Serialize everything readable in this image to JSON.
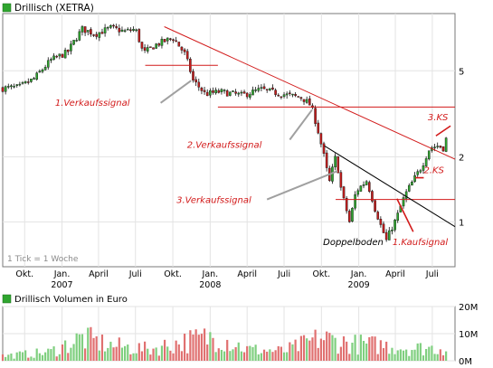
{
  "chart_data": [
    {
      "type": "candlestick",
      "title": "Drillisch (XETRA)",
      "legend_swatch_color": "#2fa52f",
      "x_tick_labels": [
        {
          "month": "Okt.",
          "date": "2006-10"
        },
        {
          "month": "Jan.",
          "year": "2007",
          "date": "2007-01"
        },
        {
          "month": "April",
          "date": "2007-04"
        },
        {
          "month": "Juli",
          "date": "2007-07"
        },
        {
          "month": "Okt.",
          "date": "2007-10"
        },
        {
          "month": "Jan.",
          "year": "2008",
          "date": "2008-01"
        },
        {
          "month": "April",
          "date": "2008-04"
        },
        {
          "month": "Juli",
          "date": "2008-07"
        },
        {
          "month": "Okt.",
          "date": "2008-10"
        },
        {
          "month": "Jan.",
          "year": "2009",
          "date": "2009-01"
        },
        {
          "month": "April",
          "date": "2009-04"
        },
        {
          "month": "Juli",
          "date": "2009-07"
        }
      ],
      "y_ticks": [
        {
          "value": 5,
          "label": "5"
        },
        {
          "value": 2,
          "label": "2"
        },
        {
          "value": 1,
          "label": "1"
        }
      ],
      "y_scale": "log",
      "ylim": [
        0.62,
        9.2
      ],
      "xlim": [
        "2006-08-08",
        "2009-08-26"
      ],
      "grid": true,
      "tick_note": "1 Tick = 1 Woche",
      "up_color": "#2fa52f",
      "down_color": "#c21d1d",
      "price_path": [
        [
          "2006-08-08",
          4.15
        ],
        [
          "2006-09-18",
          4.2
        ],
        [
          "2006-10-25",
          4.6
        ],
        [
          "2006-12-05",
          5.6
        ],
        [
          "2007-01-15",
          6.1
        ],
        [
          "2007-02-20",
          7.8
        ],
        [
          "2007-03-25",
          7.4
        ],
        [
          "2007-05-01",
          7.9
        ],
        [
          "2007-06-05",
          7.6
        ],
        [
          "2007-07-01",
          7.8
        ],
        [
          "2007-07-20",
          6.0
        ],
        [
          "2007-08-20",
          6.6
        ],
        [
          "2007-10-01",
          7.1
        ],
        [
          "2007-10-30",
          6.0
        ],
        [
          "2007-11-20",
          4.5
        ],
        [
          "2007-12-20",
          3.9
        ],
        [
          "2008-01-25",
          4.0
        ],
        [
          "2008-03-20",
          3.85
        ],
        [
          "2008-05-05",
          4.1
        ],
        [
          "2008-06-25",
          3.9
        ],
        [
          "2008-08-15",
          3.75
        ],
        [
          "2008-09-05",
          3.45
        ],
        [
          "2008-09-30",
          2.3
        ],
        [
          "2008-10-20",
          1.5
        ],
        [
          "2008-11-05",
          2.0
        ],
        [
          "2008-11-20",
          1.35
        ],
        [
          "2008-12-10",
          0.98
        ],
        [
          "2008-12-25",
          1.38
        ],
        [
          "2009-01-20",
          1.55
        ],
        [
          "2009-02-10",
          1.15
        ],
        [
          "2009-02-25",
          0.95
        ],
        [
          "2009-03-10",
          0.82
        ],
        [
          "2009-04-05",
          1.05
        ],
        [
          "2009-04-25",
          1.33
        ],
        [
          "2009-05-15",
          1.55
        ],
        [
          "2009-06-05",
          1.8
        ],
        [
          "2009-06-25",
          2.2
        ],
        [
          "2009-07-15",
          2.25
        ],
        [
          "2009-07-28",
          2.2
        ],
        [
          "2009-08-10",
          2.6
        ]
      ],
      "trend_lines": [
        {
          "name": "downtrend",
          "color": "#d21a1a",
          "points": [
            [
              "2007-09-10",
              8.0
            ],
            [
              "2009-08-26",
              1.95
            ]
          ]
        },
        {
          "name": "resistance-1",
          "color": "#d21a1a",
          "points": [
            [
              "2007-07-25",
              5.3
            ],
            [
              "2008-01-20",
              5.3
            ]
          ]
        },
        {
          "name": "resistance-2",
          "color": "#d21a1a",
          "points": [
            [
              "2008-01-20",
              3.4
            ],
            [
              "2009-08-26",
              3.4
            ]
          ]
        },
        {
          "name": "resistance-3",
          "color": "#d21a1a",
          "points": [
            [
              "2008-11-05",
              1.27
            ],
            [
              "2009-08-26",
              1.27
            ]
          ]
        },
        {
          "name": "channel-top",
          "color": "#000000",
          "points": [
            [
              "2008-10-08",
              2.25
            ],
            [
              "2009-08-26",
              0.95
            ]
          ]
        }
      ],
      "annotations": [
        {
          "text": "1.Verkaufssignal",
          "color": "#d21a1a",
          "italic": true,
          "date": "2006-12-15",
          "value": 3.45,
          "arrow": {
            "from": [
              "2007-09-01",
              3.55
            ],
            "to": [
              "2007-11-15",
              4.5
            ],
            "color": "#a0a0a0"
          }
        },
        {
          "text": "2.Verkaufssignal",
          "color": "#d21a1a",
          "italic": true,
          "date": "2007-11-05",
          "value": 2.2,
          "arrow": {
            "from": [
              "2008-07-15",
              2.4
            ],
            "to": [
              "2008-09-08",
              3.3
            ],
            "color": "#a0a0a0"
          }
        },
        {
          "text": "3.Verkaufssignal",
          "color": "#d21a1a",
          "italic": true,
          "date": "2007-10-10",
          "value": 1.22,
          "arrow": {
            "from": [
              "2008-05-20",
              1.27
            ],
            "to": [
              "2008-11-10",
              1.72
            ],
            "color": "#a0a0a0"
          }
        },
        {
          "text": "Doppelboden",
          "color": "#000000",
          "italic": true,
          "date": "2008-10-05",
          "value": 0.78,
          "arrow": null
        },
        {
          "text": "1.Kaufsignal",
          "color": "#d21a1a",
          "italic": true,
          "date": "2009-03-25",
          "value": 0.78,
          "arrow": {
            "from": [
              "2009-05-15",
              0.9
            ],
            "to": [
              "2009-04-05",
              1.28
            ],
            "color": "#d21a1a"
          }
        },
        {
          "text": "2.KS",
          "color": "#d21a1a",
          "italic": true,
          "date": "2009-06-10",
          "value": 1.68,
          "arrow": {
            "from": [
              "2009-06-10",
              1.6
            ],
            "to": [
              "2009-05-20",
              1.6
            ],
            "color": "#d21a1a"
          }
        },
        {
          "text": "3.KS",
          "color": "#d21a1a",
          "italic": true,
          "date": "2009-06-20",
          "value": 2.95,
          "arrow": {
            "from": [
              "2009-07-10",
              2.5
            ],
            "to": [
              "2009-08-15",
              2.78
            ],
            "color": "#d21a1a"
          }
        }
      ]
    },
    {
      "type": "bar",
      "title": "Drillisch Volumen in Euro",
      "legend_swatch_color": "#2fa52f",
      "y_ticks": [
        {
          "value": 0,
          "label": "0M"
        },
        {
          "value": 10,
          "label": "10M"
        },
        {
          "value": 20,
          "label": "20M"
        }
      ],
      "ylim": [
        0,
        20
      ],
      "grid": true,
      "volume_envelope": [
        [
          "2006-08-08",
          2.5
        ],
        [
          "2006-12-01",
          4.5
        ],
        [
          "2007-02-20",
          12
        ],
        [
          "2007-05-01",
          8
        ],
        [
          "2007-08-01",
          6
        ],
        [
          "2007-10-30",
          10
        ],
        [
          "2008-01-20",
          13
        ],
        [
          "2008-04-01",
          6
        ],
        [
          "2008-07-01",
          5
        ],
        [
          "2008-10-01",
          12
        ],
        [
          "2008-12-10",
          9
        ],
        [
          "2009-03-10",
          8
        ],
        [
          "2009-05-15",
          6.5
        ],
        [
          "2009-08-10",
          7
        ]
      ],
      "colors": {
        "up": "#7fcf7f",
        "down": "#e07070"
      }
    }
  ]
}
